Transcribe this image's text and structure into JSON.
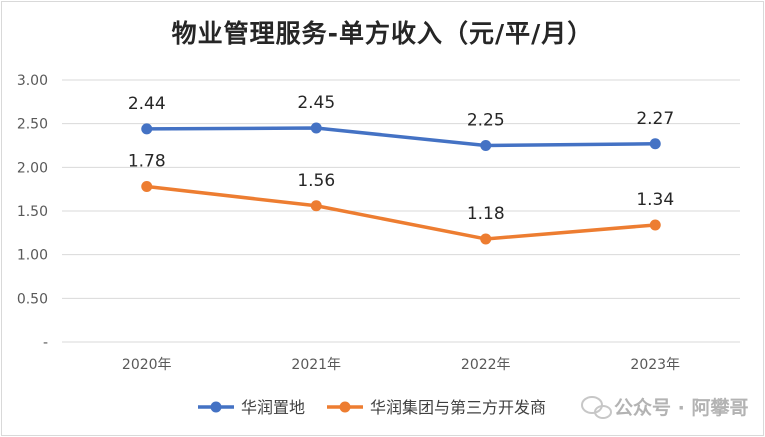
{
  "chart_data": {
    "type": "line",
    "title": "物业管理服务-单方收入（元/平/月）",
    "categories": [
      "2020年",
      "2021年",
      "2022年",
      "2023年"
    ],
    "ylim": [
      0,
      3
    ],
    "yticks": [
      "-",
      "0.50",
      "1.00",
      "1.50",
      "2.00",
      "2.50",
      "3.00"
    ],
    "ytick_values": [
      0,
      0.5,
      1.0,
      1.5,
      2.0,
      2.5,
      3.0
    ],
    "grid": true,
    "legend_position": "bottom",
    "series": [
      {
        "name": "华润置地",
        "values": [
          2.44,
          2.45,
          2.25,
          2.27
        ],
        "labels": [
          "2.44",
          "2.45",
          "2.25",
          "2.27"
        ],
        "color": "#4472c4"
      },
      {
        "name": "华润集团与第三方开发商",
        "values": [
          1.78,
          1.56,
          1.18,
          1.34
        ],
        "labels": [
          "1.78",
          "1.56",
          "1.18",
          "1.34"
        ],
        "color": "#ed7d31"
      }
    ]
  },
  "watermark": {
    "text": "公众号 · 阿攀哥",
    "icon": "wechat-icon"
  }
}
